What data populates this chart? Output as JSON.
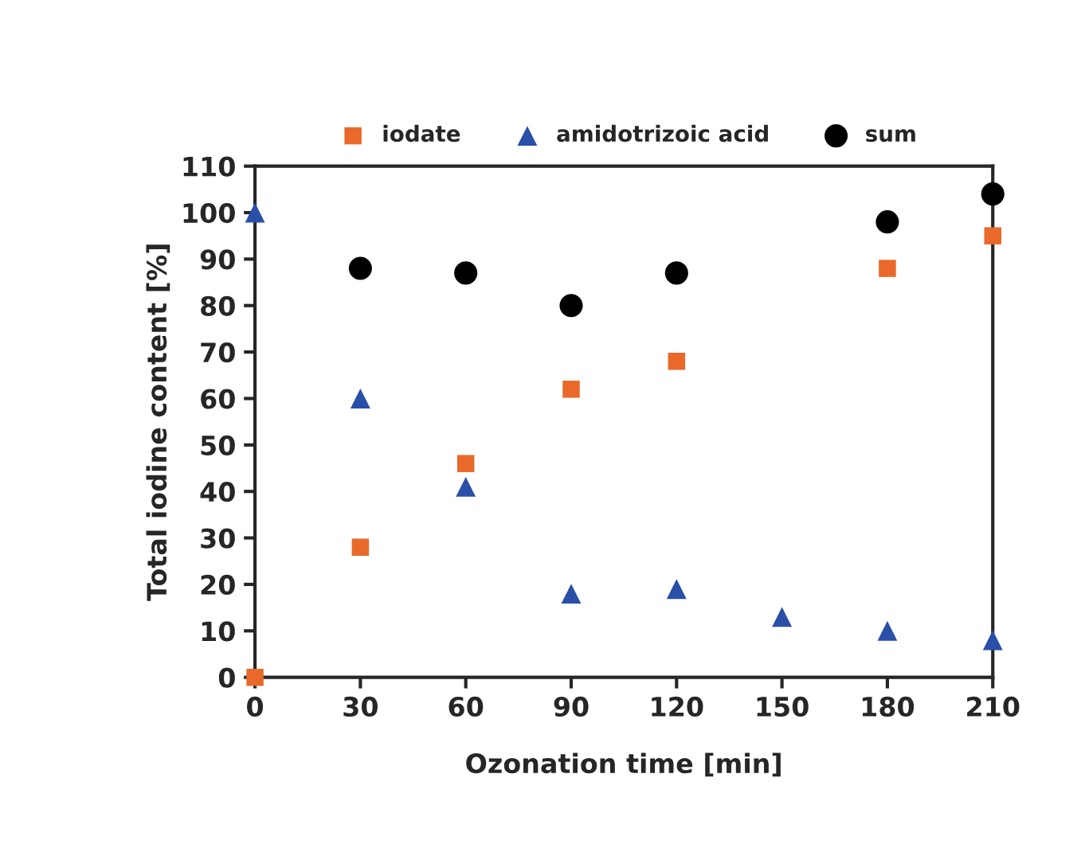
{
  "chart_data": {
    "type": "scatter",
    "xlabel": "Ozonation time [min]",
    "ylabel": "Total iodine content [%]",
    "x": [
      0,
      30,
      60,
      90,
      120,
      150,
      180,
      210
    ],
    "series": [
      {
        "name": "iodate",
        "color": "#e8692a",
        "marker": "square",
        "values": [
          0,
          28,
          46,
          62,
          68,
          null,
          88,
          95
        ]
      },
      {
        "name": "amidotrizoic acid",
        "color": "#2a4fa8",
        "marker": "triangle",
        "values": [
          100,
          60,
          41,
          18,
          19,
          13,
          10,
          8
        ]
      },
      {
        "name": "sum",
        "color": "#000000",
        "marker": "circle",
        "values": [
          null,
          88,
          87,
          80,
          87,
          null,
          98,
          104
        ]
      }
    ],
    "xlim": [
      0,
      210
    ],
    "xticks": [
      0,
      30,
      60,
      90,
      120,
      150,
      180,
      210
    ],
    "ylim": [
      0,
      110
    ],
    "yticks": [
      0,
      10,
      20,
      30,
      40,
      50,
      60,
      70,
      80,
      90,
      100,
      110
    ],
    "grid": false,
    "legend": "top"
  }
}
